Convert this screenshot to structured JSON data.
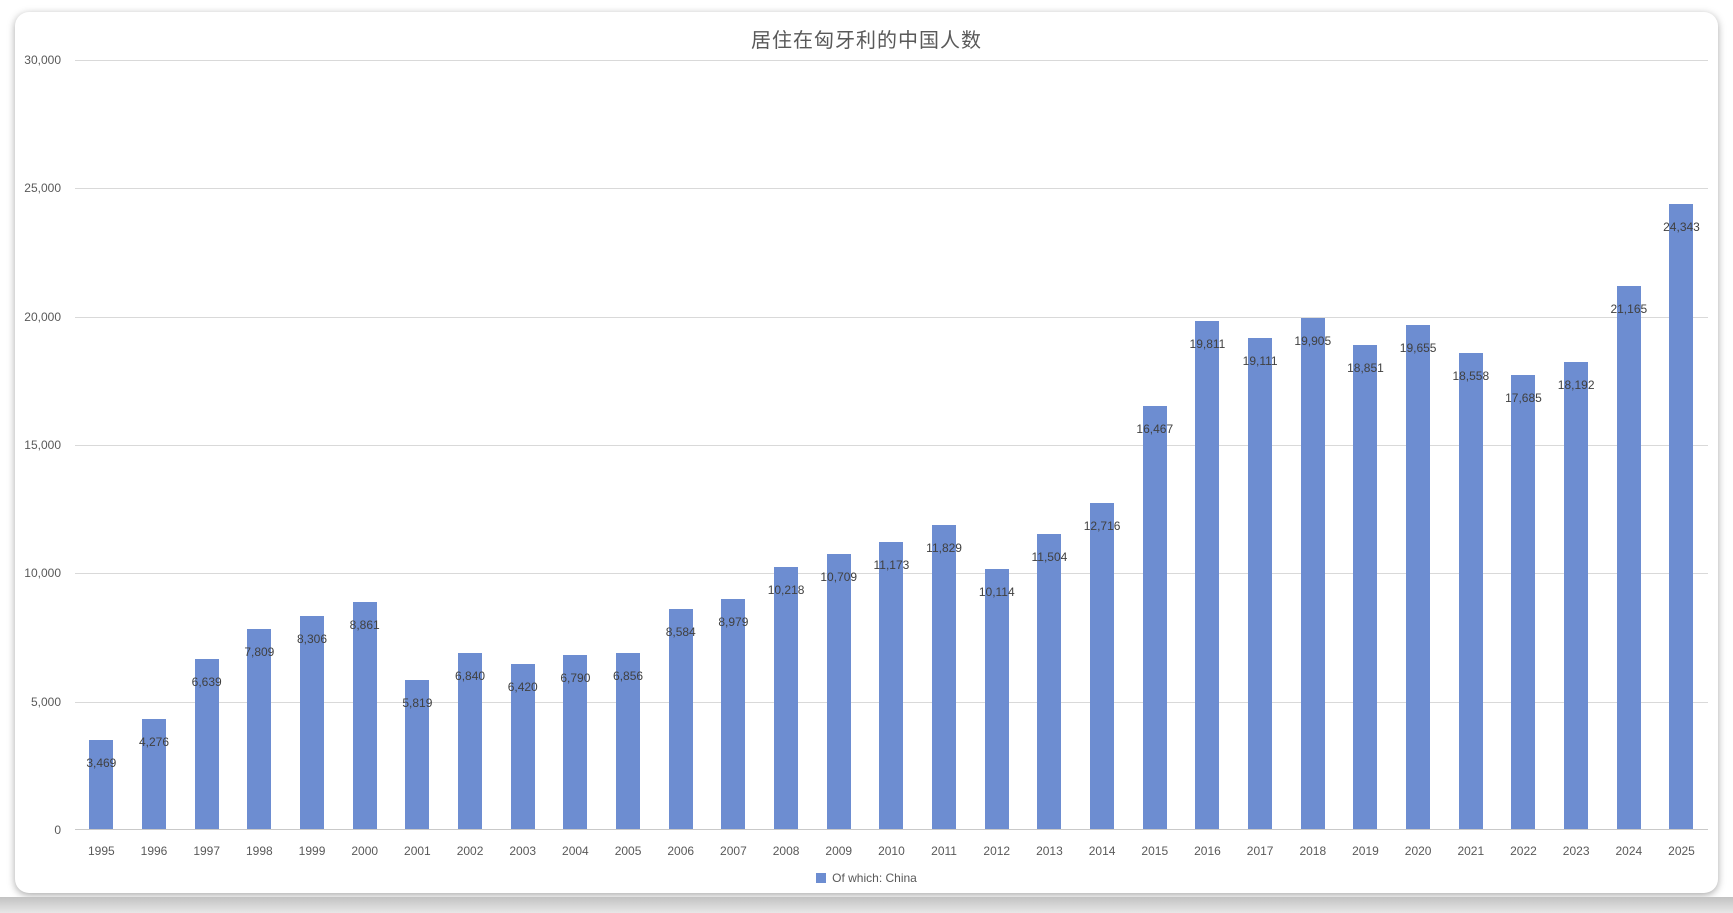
{
  "chart_data": {
    "type": "bar",
    "title": "居住在匈牙利的中国人数",
    "categories": [
      "1995",
      "1996",
      "1997",
      "1998",
      "1999",
      "2000",
      "2001",
      "2002",
      "2003",
      "2004",
      "2005",
      "2006",
      "2007",
      "2008",
      "2009",
      "2010",
      "2011",
      "2012",
      "2013",
      "2014",
      "2015",
      "2016",
      "2017",
      "2018",
      "2019",
      "2020",
      "2021",
      "2022",
      "2023",
      "2024",
      "2025"
    ],
    "series": [
      {
        "name": "Of which: China",
        "color": "#6D8DD1",
        "values": [
          3469,
          4276,
          6639,
          7809,
          8306,
          8861,
          5819,
          6840,
          6420,
          6790,
          6856,
          8584,
          8979,
          10218,
          10709,
          11173,
          11829,
          10114,
          11504,
          12716,
          16467,
          19811,
          19111,
          19905,
          18851,
          19655,
          18558,
          17685,
          18192,
          21165,
          24343
        ],
        "labels": [
          "3,469",
          "4,276",
          "6,639",
          "7,809",
          "8,306",
          "8,861",
          "5,819",
          "6,840",
          "6,420",
          "6,790",
          "6,856",
          "8,584",
          "8,979",
          "10,218",
          "10,709",
          "11,173",
          "11,829",
          "10,114",
          "11,504",
          "12,716",
          "16,467",
          "19,811",
          "19,111",
          "19,905",
          "18,851",
          "19,655",
          "18,558",
          "17,685",
          "18,192",
          "21,165",
          "24,343"
        ]
      }
    ],
    "xlabel": "",
    "ylabel": "",
    "ylim": [
      0,
      30000
    ],
    "yticks": [
      0,
      5000,
      10000,
      15000,
      20000,
      25000,
      30000
    ],
    "ytick_labels": [
      "0",
      "5,000",
      "10,000",
      "15,000",
      "20,000",
      "25,000",
      "30,000"
    ],
    "grid": true,
    "legend_position": "bottom"
  }
}
